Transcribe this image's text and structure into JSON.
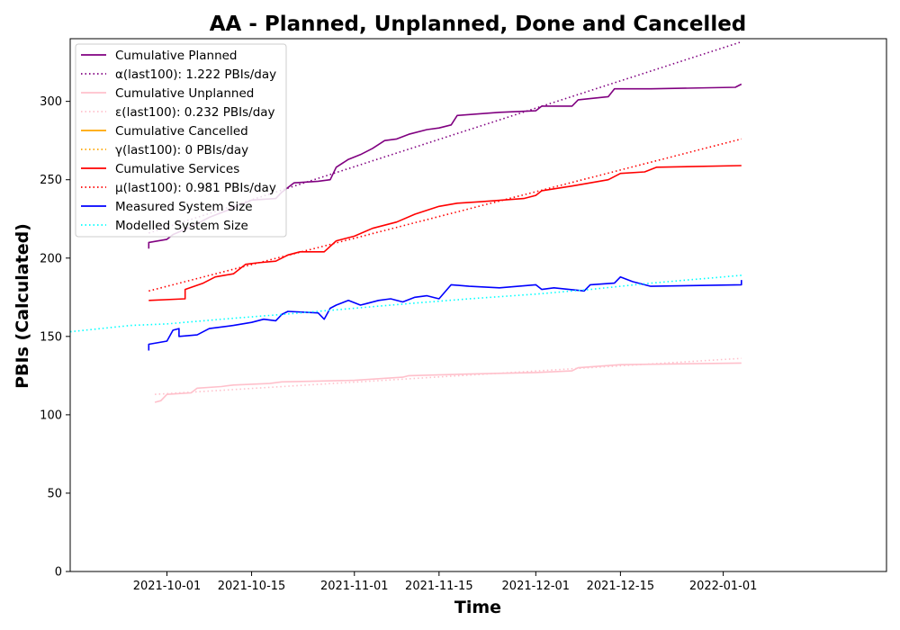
{
  "chart_data": {
    "type": "line",
    "title": "AA - Planned, Unplanned, Done  and Cancelled",
    "xlabel": "Time",
    "ylabel": "PBIs (Calculated)",
    "xlim": [
      "2021-09-15",
      "2022-01-28"
    ],
    "ylim": [
      0,
      340
    ],
    "x_ticks": [
      "2021-10-01",
      "2021-10-15",
      "2021-11-01",
      "2021-11-15",
      "2021-12-01",
      "2021-12-15",
      "2022-01-01"
    ],
    "y_ticks": [
      0,
      50,
      100,
      150,
      200,
      250,
      300
    ],
    "grid": false,
    "legend_position": "top-left",
    "series": [
      {
        "name": "Cumulative Planned",
        "color": "#800080",
        "style": "solid",
        "x": [
          "2021-09-28",
          "2021-09-28",
          "2021-10-01",
          "2021-10-02",
          "2021-10-05",
          "2021-10-08",
          "2021-10-12",
          "2021-10-15",
          "2021-10-19",
          "2021-10-20",
          "2021-10-22",
          "2021-10-26",
          "2021-10-28",
          "2021-10-29",
          "2021-10-31",
          "2021-11-02",
          "2021-11-04",
          "2021-11-06",
          "2021-11-08",
          "2021-11-10",
          "2021-11-13",
          "2021-11-15",
          "2021-11-17",
          "2021-11-18",
          "2021-11-25",
          "2021-12-01",
          "2021-12-02",
          "2021-12-07",
          "2021-12-08",
          "2021-12-13",
          "2021-12-14",
          "2021-12-20",
          "2022-01-03",
          "2022-01-04"
        ],
        "y": [
          206,
          210,
          212,
          215,
          220,
          226,
          232,
          237,
          238,
          242,
          248,
          249,
          250,
          258,
          263,
          266,
          270,
          275,
          276,
          279,
          282,
          283,
          285,
          291,
          293,
          294,
          297,
          297,
          301,
          303,
          308,
          308,
          309,
          311
        ]
      },
      {
        "name": "α(last100): 1.222 PBIs/day",
        "color": "#800080",
        "style": "dotted",
        "x": [
          "2021-09-28",
          "2022-01-04"
        ],
        "y": [
          216,
          338
        ]
      },
      {
        "name": "Cumulative Unplanned",
        "color": "#ffc0cb",
        "style": "solid",
        "x": [
          "2021-09-29",
          "2021-09-30",
          "2021-10-01",
          "2021-10-05",
          "2021-10-06",
          "2021-10-10",
          "2021-10-12",
          "2021-10-18",
          "2021-10-20",
          "2021-11-01",
          "2021-11-09",
          "2021-11-10",
          "2021-11-20",
          "2021-12-01",
          "2021-12-07",
          "2021-12-08",
          "2021-12-15",
          "2022-01-04"
        ],
        "y": [
          108,
          109,
          113,
          114,
          117,
          118,
          119,
          120,
          121,
          122,
          124,
          125,
          126,
          127,
          128,
          130,
          132,
          133
        ]
      },
      {
        "name": "ε(last100): 0.232 PBIs/day",
        "color": "#ffc0cb",
        "style": "dotted",
        "x": [
          "2021-09-29",
          "2022-01-04"
        ],
        "y": [
          113,
          136
        ]
      },
      {
        "name": "Cumulative Cancelled",
        "color": "#ffa500",
        "style": "solid",
        "x": [],
        "y": []
      },
      {
        "name": "γ(last100): 0 PBIs/day",
        "color": "#ffa500",
        "style": "dotted",
        "x": [],
        "y": []
      },
      {
        "name": "Cumulative Services",
        "color": "#ff0000",
        "style": "solid",
        "x": [
          "2021-09-28",
          "2021-10-04",
          "2021-10-04",
          "2021-10-07",
          "2021-10-09",
          "2021-10-12",
          "2021-10-14",
          "2021-10-16",
          "2021-10-19",
          "2021-10-21",
          "2021-10-23",
          "2021-10-27",
          "2021-10-29",
          "2021-11-01",
          "2021-11-04",
          "2021-11-08",
          "2021-11-11",
          "2021-11-15",
          "2021-11-18",
          "2021-11-22",
          "2021-11-29",
          "2021-12-01",
          "2021-12-02",
          "2021-12-07",
          "2021-12-10",
          "2021-12-13",
          "2021-12-15",
          "2021-12-19",
          "2021-12-21",
          "2022-01-04"
        ],
        "y": [
          173,
          174,
          180,
          184,
          188,
          190,
          196,
          197,
          198,
          202,
          204,
          204,
          211,
          214,
          219,
          223,
          228,
          233,
          235,
          236,
          238,
          240,
          243,
          246,
          248,
          250,
          254,
          255,
          258,
          259
        ]
      },
      {
        "name": "μ(last100): 0.981 PBIs/day",
        "color": "#ff0000",
        "style": "dotted",
        "x": [
          "2021-09-28",
          "2022-01-04"
        ],
        "y": [
          179,
          276
        ]
      },
      {
        "name": "Measured System Size",
        "color": "#0000ff",
        "style": "solid",
        "x": [
          "2021-09-28",
          "2021-09-28",
          "2021-10-01",
          "2021-10-02",
          "2021-10-03",
          "2021-10-03",
          "2021-10-06",
          "2021-10-08",
          "2021-10-12",
          "2021-10-15",
          "2021-10-17",
          "2021-10-19",
          "2021-10-20",
          "2021-10-21",
          "2021-10-26",
          "2021-10-27",
          "2021-10-28",
          "2021-10-29",
          "2021-10-31",
          "2021-11-02",
          "2021-11-03",
          "2021-11-05",
          "2021-11-07",
          "2021-11-09",
          "2021-11-11",
          "2021-11-13",
          "2021-11-15",
          "2021-11-17",
          "2021-11-20",
          "2021-11-25",
          "2021-12-01",
          "2021-12-02",
          "2021-12-04",
          "2021-12-09",
          "2021-12-10",
          "2021-12-14",
          "2021-12-15",
          "2021-12-17",
          "2021-12-20",
          "2022-01-04",
          "2022-01-04"
        ],
        "y": [
          141,
          145,
          147,
          154,
          155,
          150,
          151,
          155,
          157,
          159,
          161,
          160,
          164,
          166,
          165,
          161,
          168,
          170,
          173,
          170,
          171,
          173,
          174,
          172,
          175,
          176,
          174,
          183,
          182,
          181,
          183,
          180,
          181,
          179,
          183,
          184,
          188,
          185,
          182,
          183,
          186
        ]
      },
      {
        "name": "Modelled System Size",
        "color": "#00ffff",
        "style": "dotted",
        "x": [
          "2021-09-15",
          "2021-09-20",
          "2021-09-25",
          "2021-10-01",
          "2021-10-10",
          "2021-10-20",
          "2021-11-01",
          "2021-11-10",
          "2021-11-20",
          "2021-12-01",
          "2021-12-10",
          "2021-12-20",
          "2022-01-01",
          "2022-01-04"
        ],
        "y": [
          153,
          155,
          157,
          158,
          161,
          164,
          168,
          171,
          174,
          177,
          180,
          184,
          188,
          189
        ]
      }
    ]
  }
}
